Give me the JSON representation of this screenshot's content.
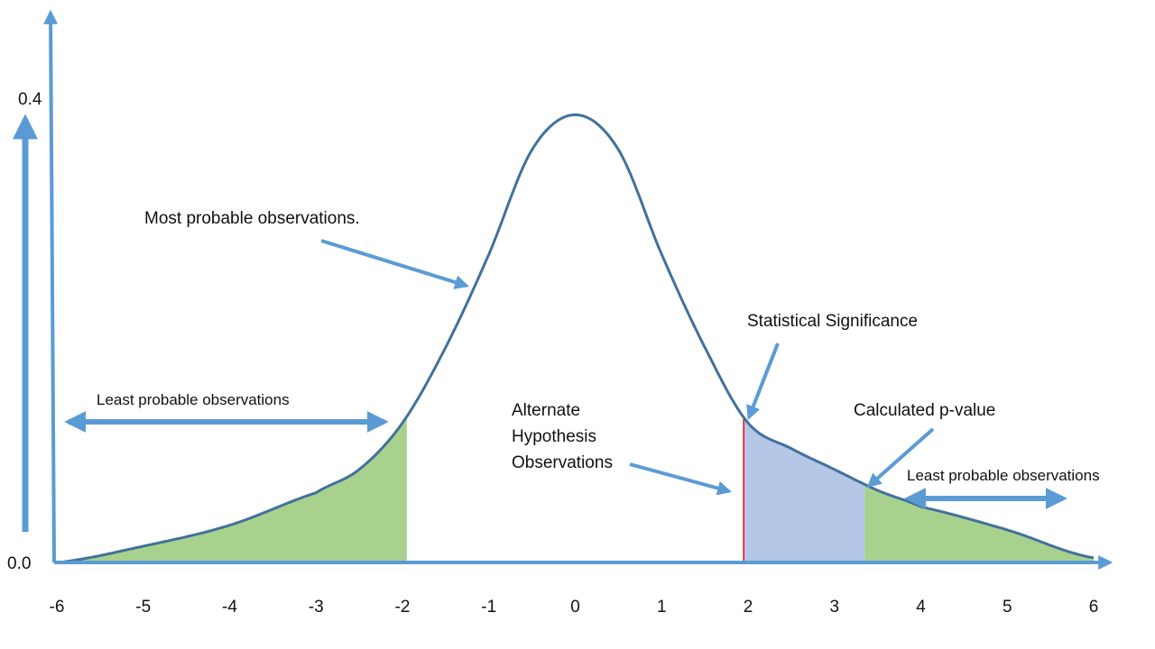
{
  "chart_data": {
    "type": "area",
    "title": "",
    "xlabel": "",
    "ylabel": "",
    "x_ticks": [
      "-6",
      "-5",
      "-4",
      "-3",
      "-2",
      "-1",
      "0",
      "1",
      "2",
      "3",
      "4",
      "5",
      "6"
    ],
    "y_ticks": [
      "0.0",
      "0.4"
    ],
    "xlim": [
      -6,
      6
    ],
    "ylim": [
      0.0,
      0.4
    ],
    "curve": {
      "x": [
        -6,
        -5,
        -4,
        -3,
        -2.5,
        -2,
        -1.5,
        -1,
        -0.5,
        0,
        0.5,
        1,
        1.5,
        2,
        2.5,
        3,
        3.5,
        4,
        5,
        6
      ],
      "y": [
        0.0,
        0.014,
        0.032,
        0.06,
        0.08,
        0.12,
        0.185,
        0.265,
        0.355,
        0.385,
        0.355,
        0.265,
        0.185,
        0.12,
        0.098,
        0.08,
        0.062,
        0.048,
        0.028,
        0.004
      ]
    },
    "shaded_regions": [
      {
        "from": -6,
        "to": -1.95,
        "color": "#a9d18e"
      },
      {
        "from": 1.95,
        "to": 3.35,
        "color": "#b4c7e7"
      },
      {
        "from": 3.35,
        "to": 6,
        "color": "#a9d18e"
      }
    ],
    "significance_line_x": 1.95,
    "colors": {
      "curve": "#41719c",
      "axis": "#5b9bd5",
      "arrow": "#5b9bd5",
      "significance": "#ff0000"
    },
    "annotations": {
      "most_probable": "Most probable observations.",
      "least_probable_left": "Least probable observations",
      "least_probable_right": "Least probable observations",
      "statistical_significance": "Statistical Significance",
      "calculated_p_value": "Calculated p-value",
      "alternate_hypothesis": [
        "Alternate",
        "Hypothesis",
        "Observations"
      ]
    },
    "grid": false,
    "legend": "none"
  }
}
